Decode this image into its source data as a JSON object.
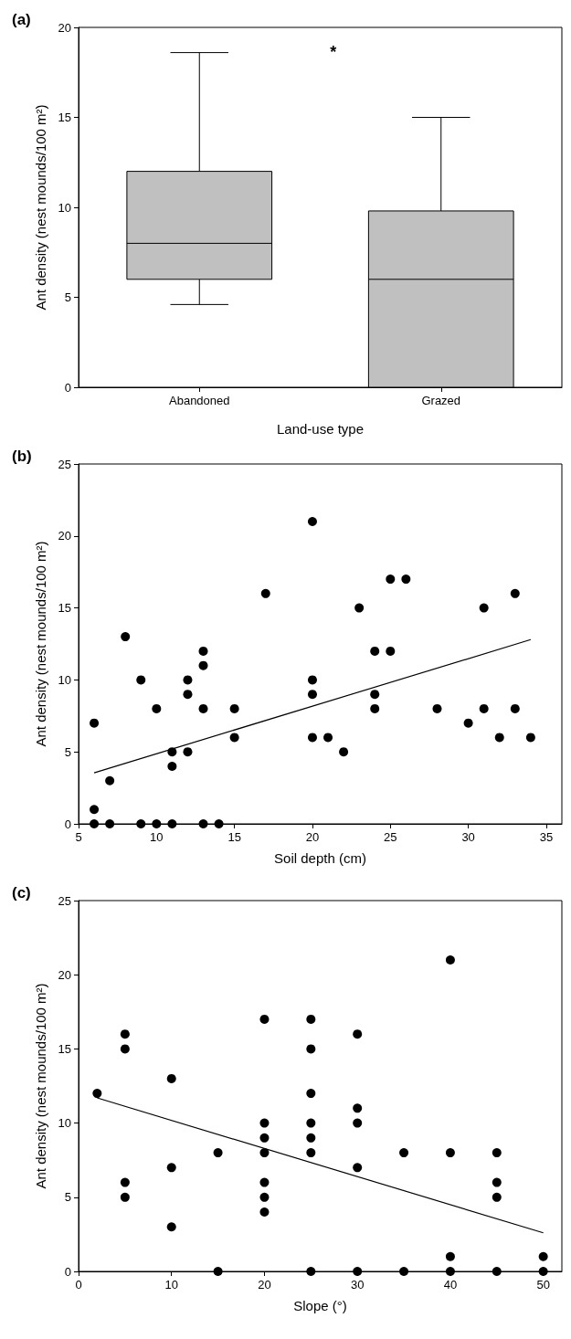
{
  "chart_data": [
    {
      "type": "box",
      "title": "(a)",
      "xlabel": "Land-use type",
      "ylabel": "Ant density (nest mounds/100 m²)",
      "categories": [
        "Abandoned",
        "Grazed"
      ],
      "color": "#c0c0c0",
      "boxes": [
        {
          "low": 4.6,
          "q1": 6,
          "median": 8,
          "q3": 12,
          "high": 18.6
        },
        {
          "low": 0,
          "q1": 0,
          "median": 6,
          "q3": 9.8,
          "high": 15
        }
      ],
      "ylim": [
        0,
        20
      ],
      "yticks": [
        0,
        5,
        10,
        15,
        20
      ],
      "grid": false,
      "annotations": [
        "*"
      ]
    },
    {
      "type": "scatter",
      "title": "(b)",
      "xlabel": "Soil depth (cm)",
      "ylabel": "Ant density (nest mounds/100 m²)",
      "xlim": [
        5,
        36
      ],
      "xticks": [
        5,
        10,
        15,
        20,
        25,
        30,
        35
      ],
      "ylim": [
        0,
        25
      ],
      "yticks": [
        0,
        5,
        10,
        15,
        20,
        25
      ],
      "grid": false,
      "series": [
        {
          "type": "scatter",
          "marker": "circle",
          "color": "#000000",
          "x": [
            6,
            6,
            6,
            7,
            7,
            8,
            9,
            9,
            10,
            10,
            11,
            11,
            11,
            12,
            12,
            12,
            13,
            13,
            13,
            13,
            14,
            15,
            15,
            17,
            20,
            20,
            20,
            20,
            21,
            22,
            23,
            24,
            24,
            24,
            25,
            25,
            26,
            28,
            30,
            31,
            31,
            32,
            33,
            33,
            34
          ],
          "values": [
            7,
            1,
            0,
            3,
            0,
            13,
            10,
            0,
            8,
            0,
            5,
            4,
            0,
            10,
            9,
            5,
            12,
            11,
            8,
            0,
            0,
            8,
            6,
            16,
            21,
            10,
            9,
            6,
            6,
            5,
            15,
            12,
            9,
            8,
            17,
            12,
            17,
            8,
            7,
            15,
            8,
            6,
            16,
            8,
            6
          ]
        },
        {
          "type": "line",
          "marker": "none",
          "color": "#000000",
          "x": [
            6,
            34
          ],
          "values": [
            3.55,
            12.8
          ]
        }
      ]
    },
    {
      "type": "scatter",
      "title": "(c)",
      "xlabel": "Slope (°)",
      "ylabel": "Ant density (nest mounds/100 m²)",
      "xlim": [
        0,
        52
      ],
      "xticks": [
        0,
        10,
        20,
        30,
        40,
        50
      ],
      "ylim": [
        0,
        25
      ],
      "yticks": [
        0,
        5,
        10,
        15,
        20,
        25
      ],
      "grid": false,
      "series": [
        {
          "type": "scatter",
          "marker": "circle",
          "color": "#000000",
          "x": [
            2,
            5,
            5,
            5,
            5,
            10,
            10,
            10,
            15,
            15,
            20,
            20,
            20,
            20,
            20,
            20,
            20,
            25,
            25,
            25,
            25,
            25,
            25,
            25,
            30,
            30,
            30,
            30,
            30,
            35,
            35,
            40,
            40,
            40,
            40,
            45,
            45,
            45,
            45,
            50,
            50
          ],
          "values": [
            12,
            16,
            15,
            6,
            5,
            13,
            7,
            3,
            8,
            0,
            17,
            10,
            9,
            8,
            6,
            5,
            4,
            17,
            15,
            12,
            10,
            9,
            8,
            0,
            16,
            11,
            10,
            7,
            0,
            8,
            0,
            21,
            8,
            1,
            0,
            8,
            6,
            5,
            0,
            1,
            0
          ]
        },
        {
          "type": "line",
          "marker": "none",
          "color": "#000000",
          "x": [
            2,
            50
          ],
          "values": [
            11.7,
            2.6
          ]
        }
      ]
    }
  ]
}
